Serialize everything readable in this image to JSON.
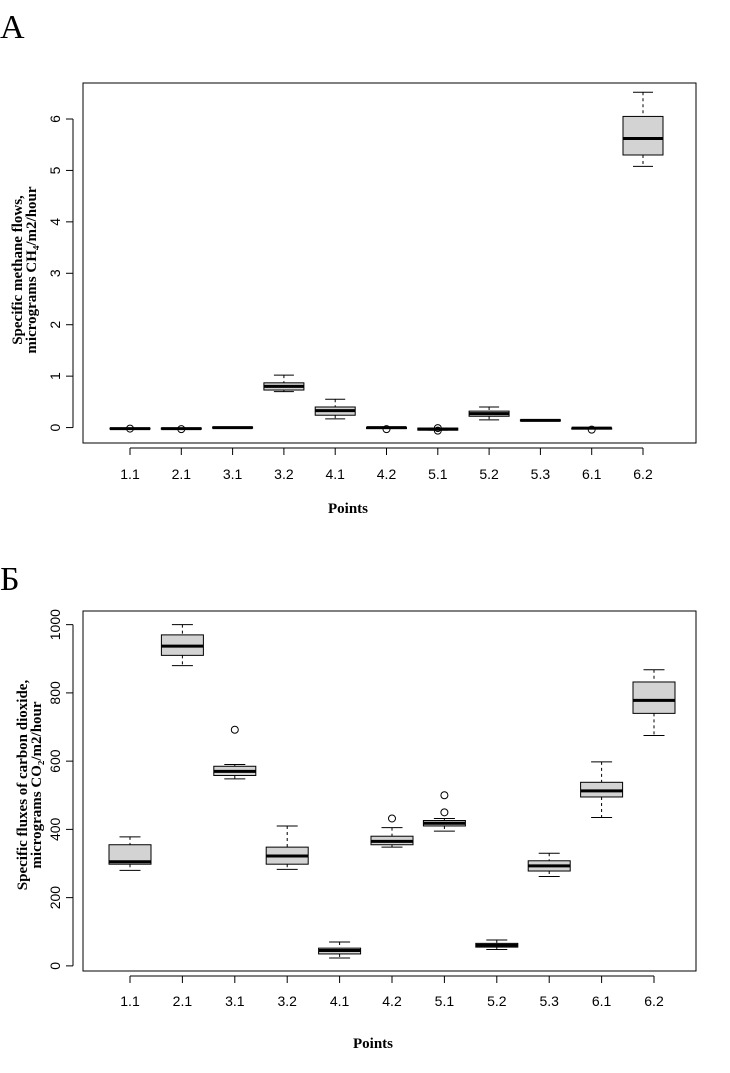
{
  "chart_data": [
    {
      "type": "box",
      "panel_label": "А",
      "xlabel": "Points",
      "ylabel_line1": "Specific methane flows,",
      "ylabel_line2": "micrograms CH₄/m2/hour",
      "categories": [
        "1.1",
        "2.1",
        "3.1",
        "3.2",
        "4.1",
        "4.2",
        "5.1",
        "5.2",
        "5.3",
        "6.1",
        "6.2"
      ],
      "yticks": [
        0,
        1,
        2,
        3,
        4,
        5,
        6
      ],
      "ylim": [
        -0.3,
        6.7
      ],
      "fill_color": "#d3d3d3",
      "boxes": [
        {
          "min": -0.02,
          "q1": -0.02,
          "median": -0.02,
          "q3": -0.01,
          "max": -0.01,
          "outliers": [
            -0.02
          ]
        },
        {
          "min": -0.03,
          "q1": -0.03,
          "median": -0.02,
          "q3": -0.01,
          "max": -0.01,
          "outliers": [
            -0.03
          ]
        },
        {
          "min": -0.01,
          "q1": -0.01,
          "median": 0.0,
          "q3": 0.01,
          "max": 0.01,
          "outliers": []
        },
        {
          "min": 0.7,
          "q1": 0.73,
          "median": 0.8,
          "q3": 0.87,
          "max": 1.02,
          "outliers": []
        },
        {
          "min": 0.17,
          "q1": 0.24,
          "median": 0.33,
          "q3": 0.4,
          "max": 0.55,
          "outliers": []
        },
        {
          "min": -0.01,
          "q1": -0.01,
          "median": 0.0,
          "q3": 0.0,
          "max": 0.0,
          "outliers": [
            -0.03
          ]
        },
        {
          "min": -0.05,
          "q1": -0.05,
          "median": -0.03,
          "q3": -0.01,
          "max": -0.01,
          "outliers": [
            -0.06,
            -0.01
          ]
        },
        {
          "min": 0.15,
          "q1": 0.22,
          "median": 0.27,
          "q3": 0.32,
          "max": 0.4,
          "outliers": []
        },
        {
          "min": 0.13,
          "q1": 0.13,
          "median": 0.14,
          "q3": 0.15,
          "max": 0.15,
          "outliers": []
        },
        {
          "min": -0.02,
          "q1": -0.02,
          "median": -0.01,
          "q3": -0.01,
          "max": -0.01,
          "outliers": [
            -0.04
          ]
        },
        {
          "min": 5.08,
          "q1": 5.3,
          "median": 5.62,
          "q3": 6.05,
          "max": 6.52,
          "outliers": []
        }
      ]
    },
    {
      "type": "box",
      "panel_label": "Б",
      "xlabel": "Points",
      "ylabel_line1": "Specific fluxes of carbon dioxide,",
      "ylabel_line2": "micrograms CO₂/m2/hour",
      "categories": [
        "1.1",
        "2.1",
        "3.1",
        "3.2",
        "4.1",
        "4.2",
        "5.1",
        "5.2",
        "5.3",
        "6.1",
        "6.2"
      ],
      "yticks": [
        0,
        200,
        400,
        600,
        800,
        1000
      ],
      "ylim": [
        -15,
        1040
      ],
      "fill_color": "#d3d3d3",
      "boxes": [
        {
          "min": 280,
          "q1": 298,
          "median": 305,
          "q3": 355,
          "max": 378,
          "outliers": []
        },
        {
          "min": 880,
          "q1": 910,
          "median": 937,
          "q3": 970,
          "max": 1000,
          "outliers": []
        },
        {
          "min": 548,
          "q1": 558,
          "median": 570,
          "q3": 585,
          "max": 590,
          "outliers": [
            692
          ]
        },
        {
          "min": 283,
          "q1": 298,
          "median": 322,
          "q3": 348,
          "max": 410,
          "outliers": []
        },
        {
          "min": 23,
          "q1": 35,
          "median": 45,
          "q3": 52,
          "max": 70,
          "outliers": []
        },
        {
          "min": 348,
          "q1": 355,
          "median": 365,
          "q3": 380,
          "max": 405,
          "outliers": [
            432
          ]
        },
        {
          "min": 395,
          "q1": 410,
          "median": 418,
          "q3": 426,
          "max": 432,
          "outliers": [
            450,
            500
          ]
        },
        {
          "min": 48,
          "q1": 55,
          "median": 60,
          "q3": 66,
          "max": 76,
          "outliers": []
        },
        {
          "min": 262,
          "q1": 278,
          "median": 293,
          "q3": 308,
          "max": 330,
          "outliers": []
        },
        {
          "min": 435,
          "q1": 495,
          "median": 513,
          "q3": 538,
          "max": 598,
          "outliers": []
        },
        {
          "min": 675,
          "q1": 740,
          "median": 778,
          "q3": 832,
          "max": 868,
          "outliers": []
        }
      ]
    }
  ]
}
